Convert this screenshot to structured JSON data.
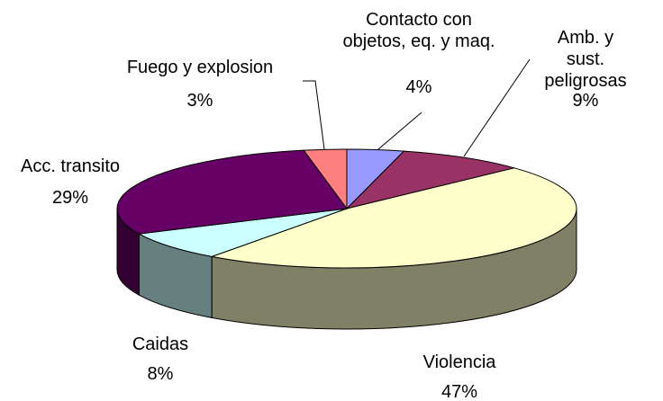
{
  "chart_data": {
    "type": "pie3d",
    "categories": [
      "Contacto con\nobjetos, eq. y maq.",
      "Amb. y sust.\npeligrosas",
      "Violencia",
      "Caidas",
      "Acc. transito",
      "Fuego y explosion"
    ],
    "values": [
      4,
      9,
      47,
      8,
      29,
      3
    ],
    "value_labels": [
      "4%",
      "9%",
      "47%",
      "8%",
      "29%",
      "3%"
    ],
    "colors": [
      "#9999ff",
      "#993366",
      "#ffffcc",
      "#ccffff",
      "#660066",
      "#ff8080"
    ]
  }
}
